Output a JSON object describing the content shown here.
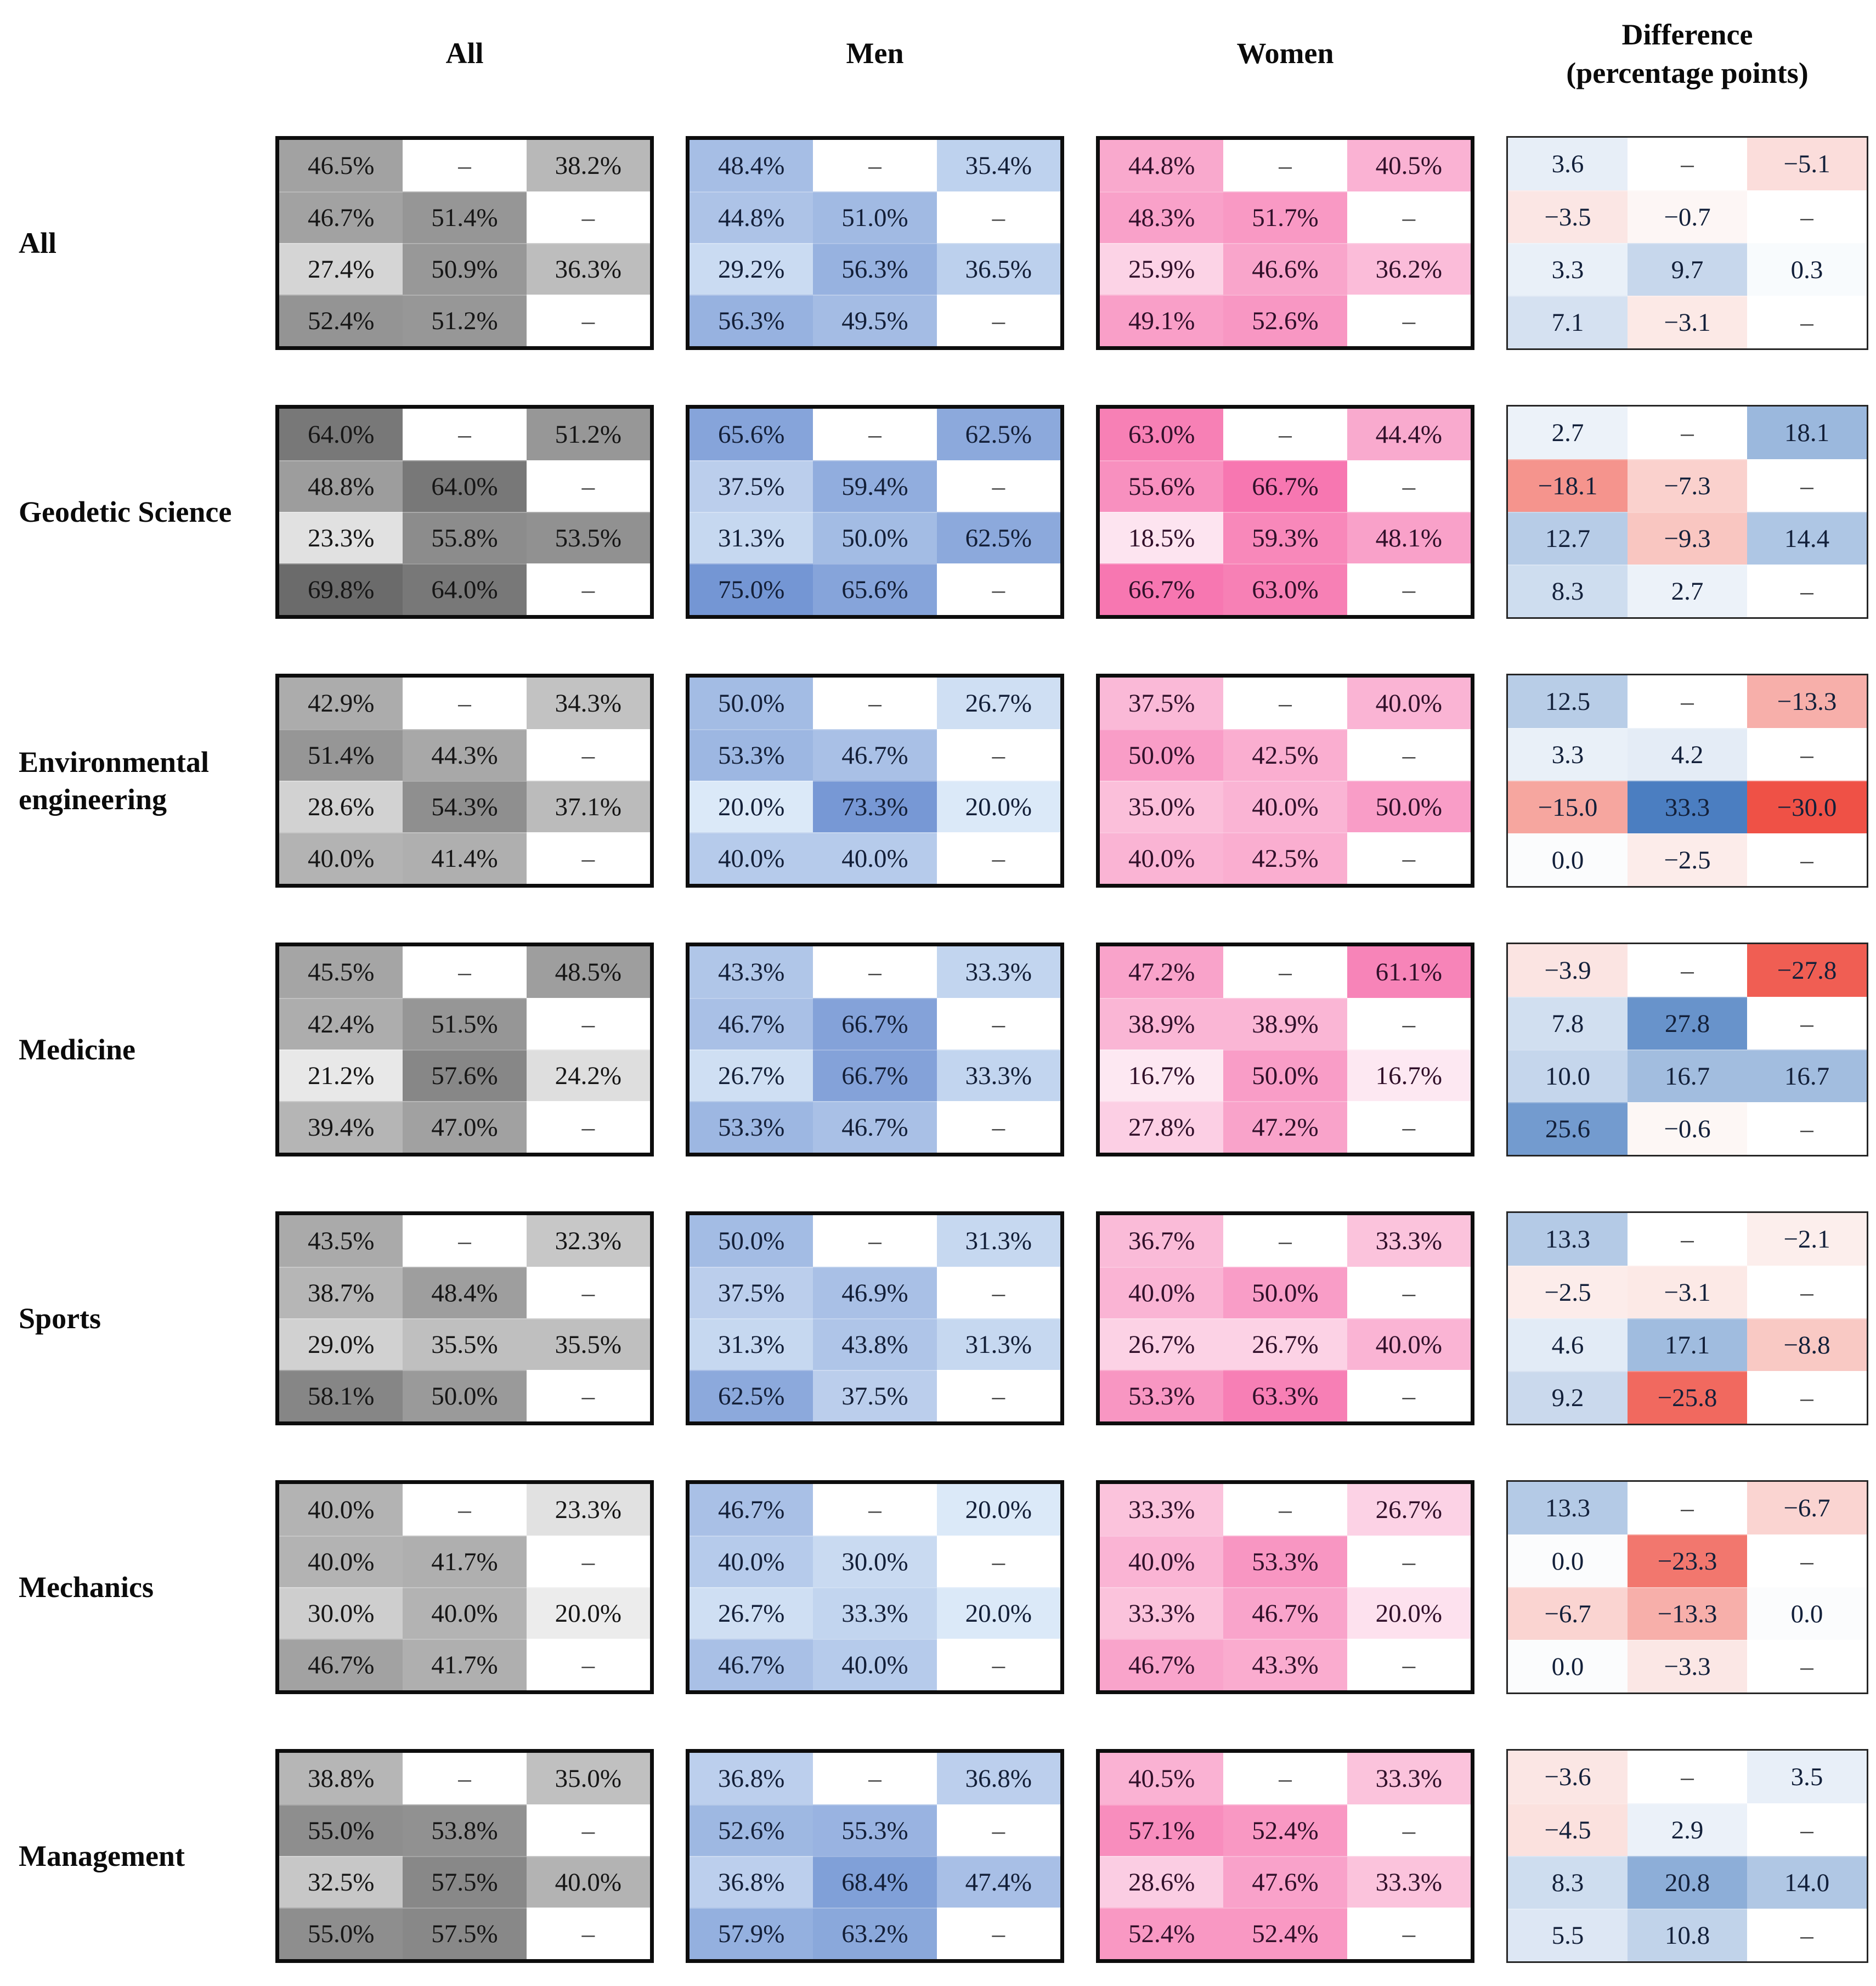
{
  "header": {
    "columns": [
      {
        "id": "all",
        "label": "All"
      },
      {
        "id": "men",
        "label": "Men"
      },
      {
        "id": "women",
        "label": "Women"
      },
      {
        "id": "diff",
        "label": "Difference",
        "sublabel": "(percentage points)"
      }
    ]
  },
  "dash_char": "–",
  "minus_char": "−",
  "colors": {
    "gray_strong": "#6f6f6f",
    "blue_strong": "#7496d4",
    "pink_strong": "#f778b1",
    "diff_positive_blue": "#4a7fc1",
    "diff_negative_red": "#ef5646",
    "grid_border": "#0d0d0d",
    "diff_grid_border": "#262626",
    "text": "#0b0b0b"
  },
  "chart_data": {
    "type": "heatmap",
    "columns": [
      "All",
      "Men",
      "Women",
      "Difference (percentage points)"
    ],
    "grid_shape": {
      "rows": 4,
      "cols": 3
    },
    "legend_note": null,
    "row_groups": [
      {
        "label": "All",
        "all": [
          [
            46.5,
            null,
            38.2
          ],
          [
            46.7,
            51.4,
            null
          ],
          [
            27.4,
            50.9,
            36.3
          ],
          [
            52.4,
            51.2,
            null
          ]
        ],
        "men": [
          [
            48.4,
            null,
            35.4
          ],
          [
            44.8,
            51.0,
            null
          ],
          [
            29.2,
            56.3,
            36.5
          ],
          [
            56.3,
            49.5,
            null
          ]
        ],
        "women": [
          [
            44.8,
            null,
            40.5
          ],
          [
            48.3,
            51.7,
            null
          ],
          [
            25.9,
            46.6,
            36.2
          ],
          [
            49.1,
            52.6,
            null
          ]
        ],
        "diff": [
          [
            3.6,
            null,
            -5.1
          ],
          [
            -3.5,
            -0.7,
            null
          ],
          [
            3.3,
            9.7,
            0.3
          ],
          [
            7.1,
            -3.1,
            null
          ]
        ]
      },
      {
        "label": "Geodetic Science",
        "all": [
          [
            64.0,
            null,
            51.2
          ],
          [
            48.8,
            64.0,
            null
          ],
          [
            23.3,
            55.8,
            53.5
          ],
          [
            69.8,
            64.0,
            null
          ]
        ],
        "men": [
          [
            65.6,
            null,
            62.5
          ],
          [
            37.5,
            59.4,
            null
          ],
          [
            31.3,
            50.0,
            62.5
          ],
          [
            75.0,
            65.6,
            null
          ]
        ],
        "women": [
          [
            63.0,
            null,
            44.4
          ],
          [
            55.6,
            66.7,
            null
          ],
          [
            18.5,
            59.3,
            48.1
          ],
          [
            66.7,
            63.0,
            null
          ]
        ],
        "diff": [
          [
            2.7,
            null,
            18.1
          ],
          [
            -18.1,
            -7.3,
            null
          ],
          [
            12.7,
            -9.3,
            14.4
          ],
          [
            8.3,
            2.7,
            null
          ]
        ]
      },
      {
        "label": "Environmental engineering",
        "all": [
          [
            42.9,
            null,
            34.3
          ],
          [
            51.4,
            44.3,
            null
          ],
          [
            28.6,
            54.3,
            37.1
          ],
          [
            40.0,
            41.4,
            null
          ]
        ],
        "men": [
          [
            50.0,
            null,
            26.7
          ],
          [
            53.3,
            46.7,
            null
          ],
          [
            20.0,
            73.3,
            20.0
          ],
          [
            40.0,
            40.0,
            null
          ]
        ],
        "women": [
          [
            37.5,
            null,
            40.0
          ],
          [
            50.0,
            42.5,
            null
          ],
          [
            35.0,
            40.0,
            50.0
          ],
          [
            40.0,
            42.5,
            null
          ]
        ],
        "diff": [
          [
            12.5,
            null,
            -13.3
          ],
          [
            3.3,
            4.2,
            null
          ],
          [
            -15.0,
            33.3,
            -30.0
          ],
          [
            0.0,
            -2.5,
            null
          ]
        ]
      },
      {
        "label": "Medicine",
        "all": [
          [
            45.5,
            null,
            48.5
          ],
          [
            42.4,
            51.5,
            null
          ],
          [
            21.2,
            57.6,
            24.2
          ],
          [
            39.4,
            47.0,
            null
          ]
        ],
        "men": [
          [
            43.3,
            null,
            33.3
          ],
          [
            46.7,
            66.7,
            null
          ],
          [
            26.7,
            66.7,
            33.3
          ],
          [
            53.3,
            46.7,
            null
          ]
        ],
        "women": [
          [
            47.2,
            null,
            61.1
          ],
          [
            38.9,
            38.9,
            null
          ],
          [
            16.7,
            50.0,
            16.7
          ],
          [
            27.8,
            47.2,
            null
          ]
        ],
        "diff": [
          [
            -3.9,
            null,
            -27.8
          ],
          [
            7.8,
            27.8,
            null
          ],
          [
            10.0,
            16.7,
            16.7
          ],
          [
            25.6,
            -0.6,
            null
          ]
        ]
      },
      {
        "label": "Sports",
        "all": [
          [
            43.5,
            null,
            32.3
          ],
          [
            38.7,
            48.4,
            null
          ],
          [
            29.0,
            35.5,
            35.5
          ],
          [
            58.1,
            50.0,
            null
          ]
        ],
        "men": [
          [
            50.0,
            null,
            31.3
          ],
          [
            37.5,
            46.9,
            null
          ],
          [
            31.3,
            43.8,
            31.3
          ],
          [
            62.5,
            37.5,
            null
          ]
        ],
        "women": [
          [
            36.7,
            null,
            33.3
          ],
          [
            40.0,
            50.0,
            null
          ],
          [
            26.7,
            26.7,
            40.0
          ],
          [
            53.3,
            63.3,
            null
          ]
        ],
        "diff": [
          [
            13.3,
            null,
            -2.1
          ],
          [
            -2.5,
            -3.1,
            null
          ],
          [
            4.6,
            17.1,
            -8.8
          ],
          [
            9.2,
            -25.8,
            null
          ]
        ]
      },
      {
        "label": "Mechanics",
        "all": [
          [
            40.0,
            null,
            23.3
          ],
          [
            40.0,
            41.7,
            null
          ],
          [
            30.0,
            40.0,
            20.0
          ],
          [
            46.7,
            41.7,
            null
          ]
        ],
        "men": [
          [
            46.7,
            null,
            20.0
          ],
          [
            40.0,
            30.0,
            null
          ],
          [
            26.7,
            33.3,
            20.0
          ],
          [
            46.7,
            40.0,
            null
          ]
        ],
        "women": [
          [
            33.3,
            null,
            26.7
          ],
          [
            40.0,
            53.3,
            null
          ],
          [
            33.3,
            46.7,
            20.0
          ],
          [
            46.7,
            43.3,
            null
          ]
        ],
        "diff": [
          [
            13.3,
            null,
            -6.7
          ],
          [
            0.0,
            -23.3,
            null
          ],
          [
            -6.7,
            -13.3,
            0.0
          ],
          [
            0.0,
            -3.3,
            null
          ]
        ]
      },
      {
        "label": "Management",
        "all": [
          [
            38.8,
            null,
            35.0
          ],
          [
            55.0,
            53.8,
            null
          ],
          [
            32.5,
            57.5,
            40.0
          ],
          [
            55.0,
            57.5,
            null
          ]
        ],
        "men": [
          [
            36.8,
            null,
            36.8
          ],
          [
            52.6,
            55.3,
            null
          ],
          [
            36.8,
            68.4,
            47.4
          ],
          [
            57.9,
            63.2,
            null
          ]
        ],
        "women": [
          [
            40.5,
            null,
            33.3
          ],
          [
            57.1,
            52.4,
            null
          ],
          [
            28.6,
            47.6,
            33.3
          ],
          [
            52.4,
            52.4,
            null
          ]
        ],
        "diff": [
          [
            -3.6,
            null,
            3.5
          ],
          [
            -4.5,
            2.9,
            null
          ],
          [
            8.3,
            20.8,
            14.0
          ],
          [
            5.5,
            10.8,
            null
          ]
        ]
      }
    ]
  }
}
